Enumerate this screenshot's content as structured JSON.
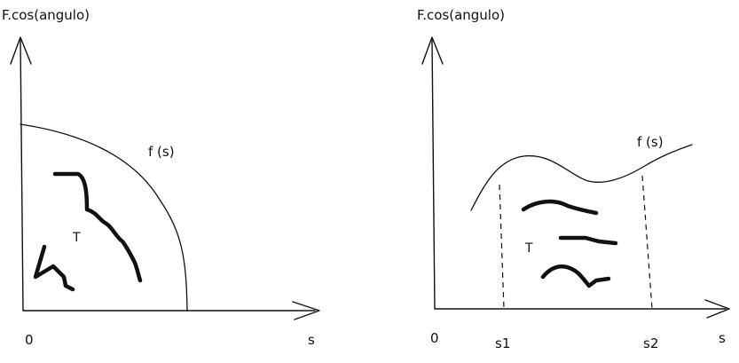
{
  "left_graph": {
    "y_axis_label": "F.cos(angulo)",
    "x_axis_label": "s",
    "origin_label": "0",
    "curve_label": "f (s)",
    "area_label": "T"
  },
  "right_graph": {
    "y_axis_label": "F.cos(angulo)",
    "x_axis_label": "s",
    "origin_label": "0",
    "curve_label": "f (s)",
    "area_label": "T",
    "bound_start_label": "s1",
    "bound_end_label": "s2"
  }
}
